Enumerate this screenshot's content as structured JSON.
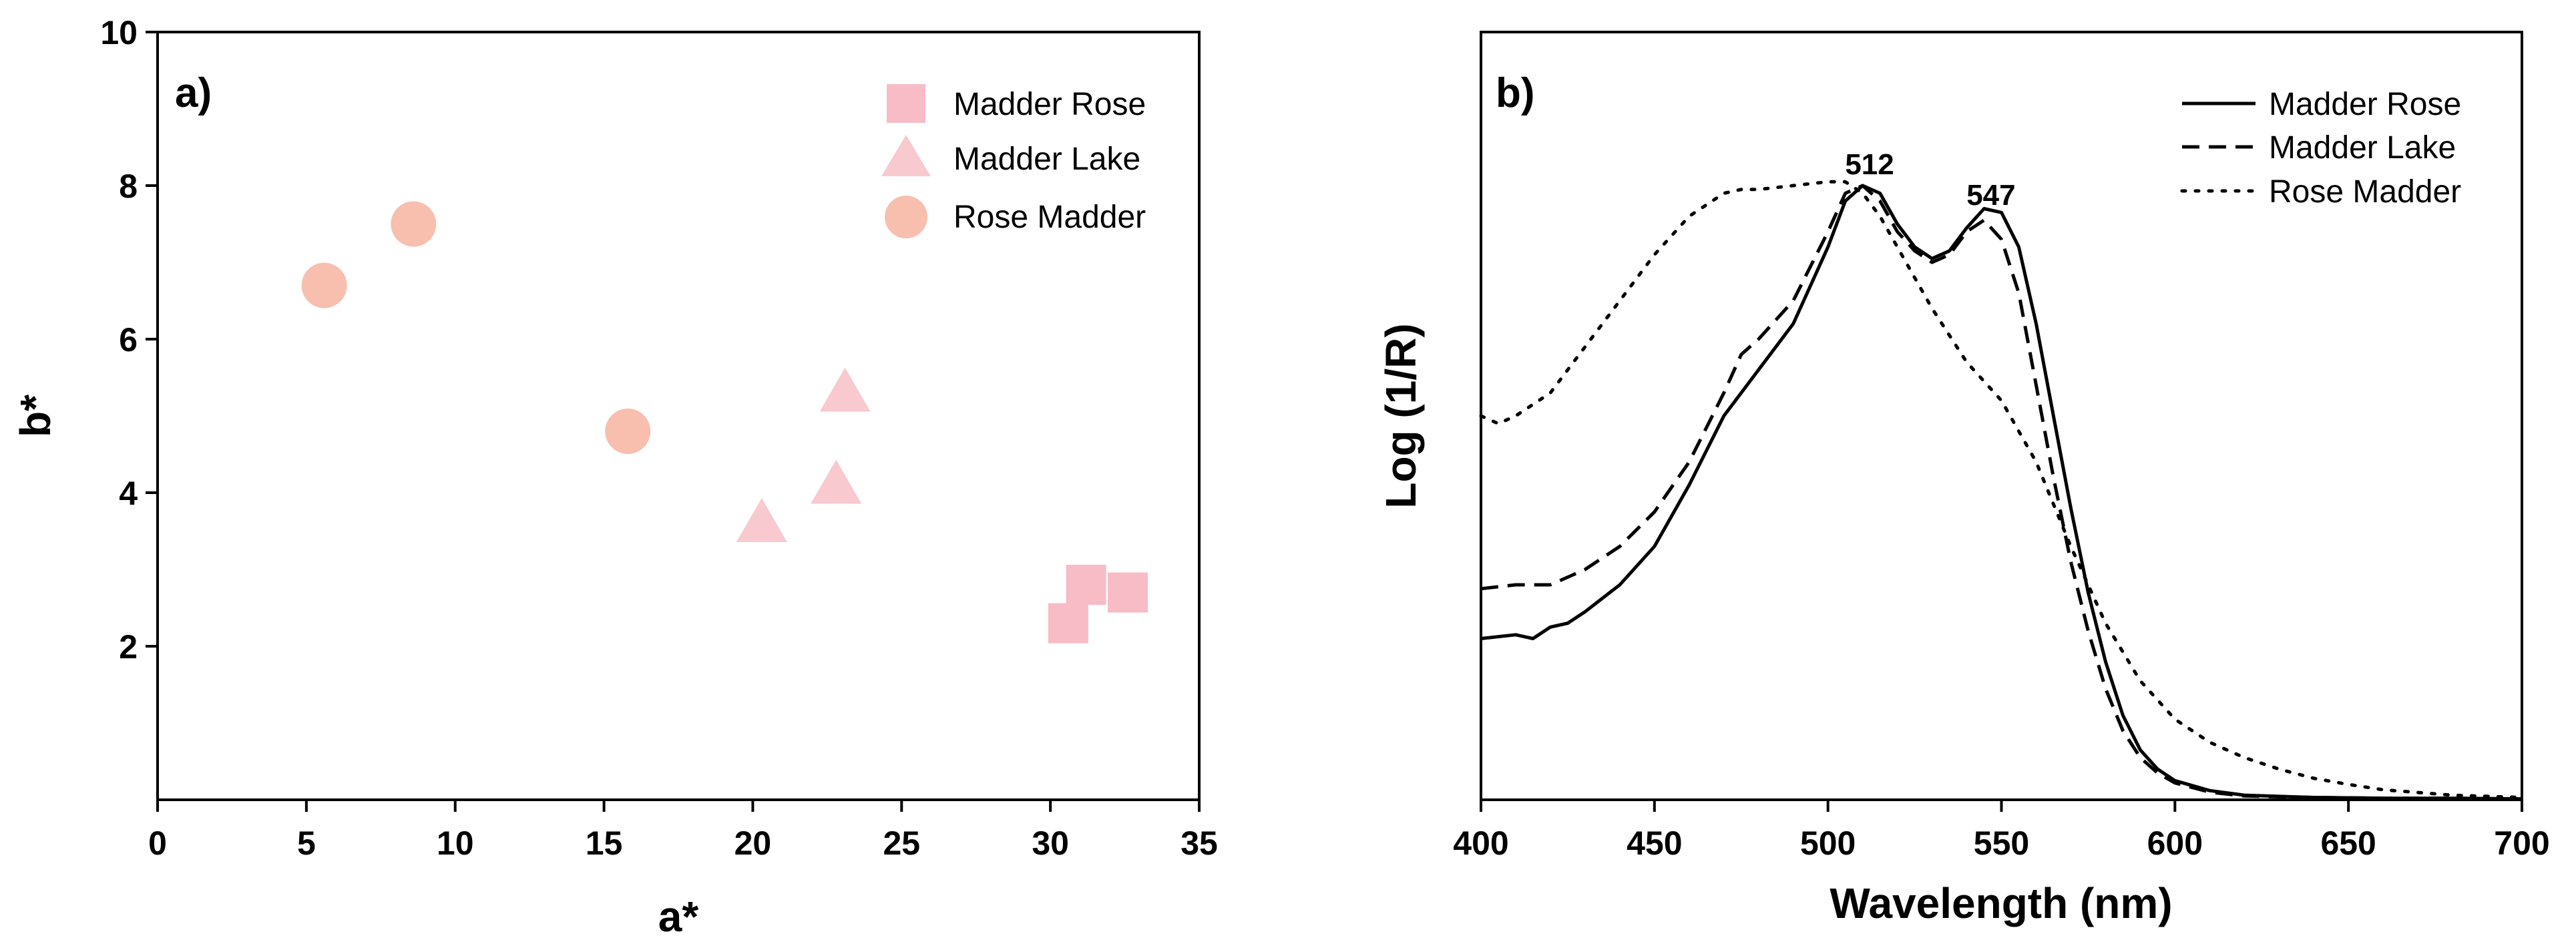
{
  "colors": {
    "madder_rose": "#f7bcc6",
    "madder_lake": "#f9c9d0",
    "rose_madder": "#f8bfae",
    "axis": "#000000"
  },
  "chart_data": [
    {
      "id": "a",
      "type": "scatter",
      "panel_label": "a)",
      "xlabel": "a*",
      "ylabel": "b*",
      "xlim": [
        0,
        35
      ],
      "ylim": [
        0,
        10
      ],
      "xticks": [
        "0",
        "5",
        "10",
        "15",
        "20",
        "25",
        "30",
        "35"
      ],
      "yticks": [
        "2",
        "4",
        "6",
        "8",
        "10"
      ],
      "legend_position": "top-right",
      "series": [
        {
          "name": "Madder Rose",
          "marker": "square",
          "color": "#f7bcc6",
          "points": [
            [
              30.6,
              2.3
            ],
            [
              31.2,
              2.8
            ],
            [
              32.6,
              2.7
            ]
          ]
        },
        {
          "name": "Madder Lake",
          "marker": "triangle",
          "color": "#f9c9d0",
          "points": [
            [
              20.3,
              3.6
            ],
            [
              22.8,
              4.1
            ],
            [
              23.1,
              5.3
            ]
          ]
        },
        {
          "name": "Rose Madder",
          "marker": "circle",
          "color": "#f8bfae",
          "points": [
            [
              5.6,
              6.7
            ],
            [
              8.6,
              7.5
            ],
            [
              15.8,
              4.8
            ]
          ]
        }
      ]
    },
    {
      "id": "b",
      "type": "line",
      "panel_label": "b)",
      "xlabel": "Wavelength (nm)",
      "ylabel": "Log (1/R)",
      "xlim": [
        400,
        700
      ],
      "ylim": [
        0,
        1.0
      ],
      "xticks": [
        "400",
        "450",
        "500",
        "550",
        "600",
        "650",
        "700"
      ],
      "legend_position": "top-right",
      "annotations": [
        {
          "text": "512",
          "x": 512,
          "y": 0.815
        },
        {
          "text": "547",
          "x": 547,
          "y": 0.775
        }
      ],
      "series": [
        {
          "name": "Madder Rose",
          "dash": "solid",
          "x": [
            400,
            410,
            415,
            420,
            425,
            430,
            440,
            450,
            460,
            470,
            480,
            490,
            500,
            505,
            510,
            515,
            520,
            525,
            530,
            535,
            540,
            545,
            550,
            555,
            560,
            565,
            570,
            575,
            580,
            585,
            590,
            595,
            600,
            610,
            620,
            640,
            660,
            680,
            700
          ],
          "y": [
            0.21,
            0.215,
            0.21,
            0.225,
            0.23,
            0.245,
            0.28,
            0.33,
            0.41,
            0.5,
            0.56,
            0.62,
            0.72,
            0.78,
            0.8,
            0.79,
            0.75,
            0.72,
            0.705,
            0.715,
            0.745,
            0.77,
            0.765,
            0.72,
            0.62,
            0.5,
            0.38,
            0.27,
            0.18,
            0.11,
            0.065,
            0.04,
            0.025,
            0.012,
            0.006,
            0.003,
            0.002,
            0.002,
            0.001
          ]
        },
        {
          "name": "Madder Lake",
          "dash": "dashed",
          "x": [
            400,
            410,
            420,
            430,
            440,
            450,
            460,
            470,
            475,
            480,
            490,
            500,
            505,
            510,
            515,
            520,
            525,
            530,
            535,
            540,
            545,
            550,
            555,
            560,
            565,
            570,
            575,
            580,
            585,
            590,
            595,
            600,
            610,
            620,
            640,
            660,
            680,
            700
          ],
          "y": [
            0.275,
            0.28,
            0.28,
            0.3,
            0.33,
            0.375,
            0.44,
            0.53,
            0.58,
            0.6,
            0.65,
            0.74,
            0.79,
            0.8,
            0.78,
            0.74,
            0.715,
            0.7,
            0.71,
            0.74,
            0.755,
            0.73,
            0.66,
            0.54,
            0.42,
            0.31,
            0.22,
            0.145,
            0.09,
            0.055,
            0.035,
            0.022,
            0.01,
            0.005,
            0.003,
            0.002,
            0.002,
            0.001
          ]
        },
        {
          "name": "Rose Madder",
          "dash": "dotted",
          "x": [
            400,
            405,
            410,
            420,
            430,
            440,
            450,
            460,
            470,
            475,
            480,
            490,
            500,
            505,
            510,
            515,
            520,
            530,
            540,
            550,
            560,
            570,
            580,
            590,
            600,
            610,
            620,
            630,
            640,
            650,
            660,
            680,
            700
          ],
          "y": [
            0.5,
            0.49,
            0.5,
            0.53,
            0.59,
            0.65,
            0.71,
            0.76,
            0.79,
            0.795,
            0.795,
            0.8,
            0.805,
            0.805,
            0.79,
            0.76,
            0.72,
            0.64,
            0.57,
            0.52,
            0.44,
            0.33,
            0.23,
            0.155,
            0.105,
            0.075,
            0.055,
            0.04,
            0.028,
            0.02,
            0.013,
            0.006,
            0.003
          ]
        }
      ]
    }
  ]
}
